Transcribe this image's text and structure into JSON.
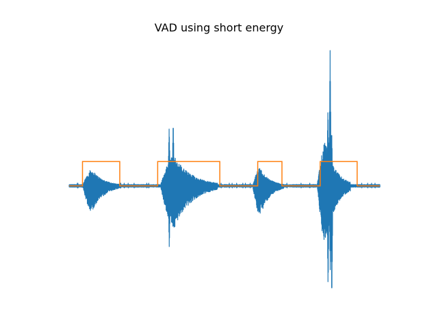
{
  "chart_data": {
    "type": "line",
    "title": "VAD using short energy",
    "axes_visible": false,
    "grid": false,
    "xlim": [
      0,
      1
    ],
    "ylim": [
      -1,
      1
    ],
    "series": [
      {
        "color": "#1f77b4",
        "kind": "waveform",
        "bursts": [
          {
            "start": 0.043,
            "end": 0.165,
            "peak_up": 0.12,
            "peak_down": -0.19,
            "spikes": []
          },
          {
            "start": 0.293,
            "end": 0.477,
            "peak_up": 0.22,
            "peak_down": -0.31,
            "spikes": [
              {
                "x": 0.322,
                "up": 0.44,
                "down": -0.47
              },
              {
                "x": 0.335,
                "up": 0.48,
                "down": -0.33
              }
            ]
          },
          {
            "start": 0.59,
            "end": 0.69,
            "peak_up": 0.13,
            "peak_down": -0.22,
            "spikes": []
          },
          {
            "start": 0.798,
            "end": 0.905,
            "peak_up": 0.32,
            "peak_down": -0.42,
            "spikes": [
              {
                "x": 0.833,
                "up": 0.58,
                "down": -0.76
              },
              {
                "x": 0.84,
                "up": 1.0,
                "down": -0.62
              },
              {
                "x": 0.845,
                "up": 0.42,
                "down": -0.85
              }
            ]
          }
        ]
      },
      {
        "color": "#ff7f0e",
        "kind": "step",
        "baseline": 0.0,
        "high": 0.2,
        "segments": [
          [
            0.043,
            0.163
          ],
          [
            0.285,
            0.485
          ],
          [
            0.607,
            0.685
          ],
          [
            0.808,
            0.927
          ]
        ]
      }
    ]
  }
}
